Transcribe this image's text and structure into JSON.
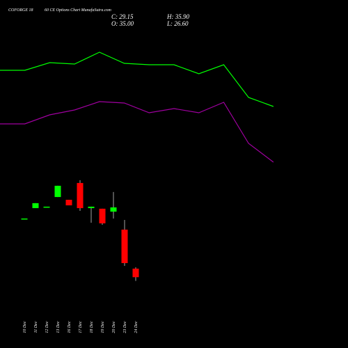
{
  "chart_data": {
    "type": "candlestick",
    "title": "COFORGE 18",
    "subtitle": "60 CE Options Chart MunafaSutra.com",
    "info": [
      "C: 29.15",
      "O: 35.00",
      "H: 35.90",
      "L: 26.60"
    ],
    "categories": [
      "10 Dec",
      "11 Dec",
      "12 Dec",
      "13 Dec",
      "16 Dec",
      "17 Dec",
      "18 Dec",
      "19 Dec",
      "20 Dec",
      "23 Dec",
      "24 Dec"
    ],
    "open": [
      69.3,
      76.4,
      77.4,
      84.0,
      82.1,
      93.6,
      76.4,
      76.0,
      74.0,
      61.7,
      35.0
    ],
    "high": [
      69.3,
      79.8,
      77.4,
      91.7,
      82.1,
      95.5,
      77.4,
      76.0,
      87.4,
      68.3,
      35.9
    ],
    "low": [
      69.3,
      76.4,
      77.4,
      84.0,
      78.3,
      74.5,
      66.4,
      65.0,
      69.3,
      36.9,
      26.6
    ],
    "close": [
      69.3,
      79.8,
      77.4,
      91.7,
      78.3,
      76.4,
      77.4,
      66.0,
      76.9,
      38.8,
      29.15
    ],
    "up_color": "#00ff00",
    "down_color": "#ff0000",
    "ylim": [
      -19.3,
      218.8
    ],
    "lines": [
      {
        "color": "#00ff00",
        "x": [
          0,
          1,
          2,
          3,
          4,
          5,
          6,
          7,
          8,
          9,
          10,
          11
        ],
        "values": [
          149,
          149,
          160,
          158,
          175,
          159,
          157,
          157,
          144,
          157,
          110,
          97
        ]
      },
      {
        "color": "#a000a0",
        "x": [
          0,
          1,
          2,
          3,
          4,
          5,
          6,
          7,
          8,
          9,
          10,
          11
        ],
        "values": [
          72,
          72,
          85,
          92,
          104,
          102,
          88,
          94,
          88,
          103,
          44,
          17
        ]
      }
    ],
    "lines_xlim": [
      0,
      14
    ],
    "lines_ylim": [
      0,
      250
    ]
  }
}
